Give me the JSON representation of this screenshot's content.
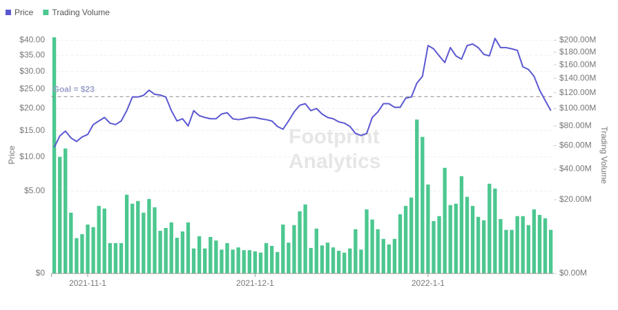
{
  "chart_data": {
    "type": "bar-line",
    "legend": "top-left",
    "watermark": [
      "Footprint",
      "Analytics"
    ],
    "categories": [
      null,
      null,
      null,
      null,
      null,
      null,
      "2021-11-1",
      null,
      null,
      null,
      null,
      null,
      null,
      null,
      null,
      null,
      null,
      null,
      null,
      null,
      null,
      null,
      null,
      null,
      null,
      null,
      null,
      null,
      null,
      null,
      null,
      null,
      null,
      null,
      null,
      null,
      "2021-12-1",
      null,
      null,
      null,
      null,
      null,
      null,
      null,
      null,
      null,
      null,
      null,
      null,
      null,
      null,
      null,
      null,
      null,
      null,
      null,
      null,
      null,
      null,
      null,
      null,
      null,
      null,
      null,
      null,
      null,
      null,
      "2022-1-1",
      null,
      null,
      null,
      null,
      null,
      null,
      null,
      null,
      null,
      null,
      null,
      null,
      null,
      null,
      null,
      null,
      null,
      null,
      null,
      null,
      null,
      null
    ],
    "series": [
      {
        "name": "Trading Volume",
        "type": "bar",
        "axis": "y2",
        "color": "#4cc790",
        "values": [
          205000000.0,
          50000000.0,
          57400000.0,
          13600000.0,
          4600000.0,
          5700000.0,
          8800000.0,
          7900000.0,
          16800000.0,
          15500000.0,
          3400000.0,
          3400000.0,
          3400000.0,
          22800000.0,
          17900000.0,
          19300000.0,
          13600000.0,
          20400000.0,
          16100000.0,
          6700000.0,
          7600000.0,
          9600000.0,
          4700000.0,
          6500000.0,
          9600000.0,
          2300000.0,
          5100000.0,
          2300000.0,
          4900000.0,
          4000000.0,
          2100000.0,
          3400000.0,
          2100000.0,
          2500000.0,
          2000000.0,
          2000000.0,
          1800000.0,
          1600000.0,
          3400000.0,
          2800000.0,
          1700000.0,
          8800000.0,
          3500000.0,
          8600000.0,
          14200000.0,
          17500000.0,
          2400000.0,
          7400000.0,
          2900000.0,
          3500000.0,
          2500000.0,
          1900000.0,
          1600000.0,
          2300000.0,
          7200000.0,
          2100000.0,
          15100000.0,
          10700000.0,
          7200000.0,
          4400000.0,
          3100000.0,
          4400000.0,
          12900000.0,
          16800000.0,
          21200000.0,
          87100000.0,
          68600000.0,
          29100000.0,
          10100000.0,
          12100000.0,
          41000000.0,
          17200000.0,
          17900000.0,
          34800000.0,
          21600000.0,
          16800000.0,
          11800000.0,
          10400000.0,
          29600000.0,
          26500000.0,
          10900000.0,
          7000000.0,
          7000000.0,
          12100000.0,
          12100000.0,
          8600000.0,
          15100000.0,
          12600000.0,
          11200000.0,
          7000000.0
        ]
      },
      {
        "name": "Price",
        "type": "line",
        "axis": "y",
        "color": "#5b57d1",
        "values": [
          11.7,
          13.9,
          14.9,
          13.5,
          12.8,
          13.7,
          14.2,
          16.3,
          17.1,
          17.9,
          16.6,
          16.3,
          17.1,
          19.5,
          22.9,
          22.9,
          23.3,
          24.7,
          23.6,
          23.4,
          22.9,
          19.5,
          17.1,
          17.6,
          16.0,
          19.5,
          18.3,
          17.9,
          17.6,
          17.6,
          18.7,
          19.0,
          17.6,
          17.4,
          17.6,
          17.9,
          17.9,
          17.6,
          17.4,
          17.1,
          15.9,
          15.3,
          17.1,
          19.2,
          20.8,
          21.2,
          19.5,
          20.0,
          18.7,
          17.9,
          17.6,
          16.9,
          16.6,
          15.9,
          14.4,
          14.0,
          14.4,
          17.9,
          19.2,
          21.2,
          21.2,
          20.3,
          20.3,
          22.6,
          22.9,
          26.6,
          28.6,
          38.2,
          37.1,
          34.8,
          32.7,
          37.5,
          34.8,
          33.8,
          38.2,
          38.7,
          37.5,
          35.3,
          34.8,
          40.6,
          37.5,
          37.5,
          37.1,
          36.6,
          31.4,
          30.6,
          28.6,
          24.7,
          22.0,
          19.5
        ]
      }
    ],
    "ylabel": "Price",
    "y2label": "Trading Volume",
    "yscale": "sqrt",
    "y2scale": "sqrt",
    "ylim": [
      0,
      42
    ],
    "y2lim": [
      0,
      210000000
    ],
    "yticks": [
      {
        "value": 0,
        "label": "$0"
      },
      {
        "value": 5,
        "label": "$5.00"
      },
      {
        "value": 10,
        "label": "$10.00"
      },
      {
        "value": 15,
        "label": "$15.00"
      },
      {
        "value": 20,
        "label": "$20.00"
      },
      {
        "value": 25,
        "label": "$25.00"
      },
      {
        "value": 30,
        "label": "$30.00"
      },
      {
        "value": 35,
        "label": "$35.00"
      },
      {
        "value": 40,
        "label": "$40.00"
      }
    ],
    "y2ticks": [
      {
        "value": 0,
        "label": "$0.00M"
      },
      {
        "value": 20000000,
        "label": "$20.00M"
      },
      {
        "value": 40000000,
        "label": "$40.00M"
      },
      {
        "value": 60000000,
        "label": "$60.00M"
      },
      {
        "value": 80000000,
        "label": "$80.00M"
      },
      {
        "value": 100000000,
        "label": "$100.00M"
      },
      {
        "value": 120000000,
        "label": "$120.00M"
      },
      {
        "value": 140000000,
        "label": "$140.00M"
      },
      {
        "value": 160000000,
        "label": "$160.00M"
      },
      {
        "value": 180000000,
        "label": "$180.00M"
      },
      {
        "value": 200000000,
        "label": "$200.00M"
      }
    ],
    "grid": true,
    "annotations": [
      {
        "text": "Goal = $23",
        "value": 23
      }
    ]
  }
}
